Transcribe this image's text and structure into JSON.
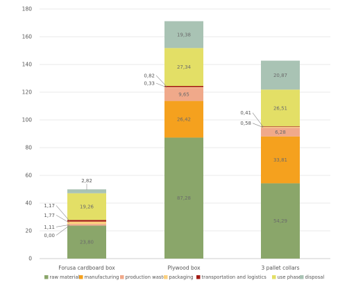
{
  "chart_data": {
    "type": "bar",
    "stacked": true,
    "categories": [
      "Forusa cardboard box",
      "Plywood box",
      "3 pallet collars"
    ],
    "ylim": [
      0,
      180
    ],
    "yticks": [
      "0",
      "20",
      "40",
      "60",
      "80",
      "100",
      "120",
      "140",
      "160",
      "180"
    ],
    "grid": true,
    "legend_position": "bottom",
    "series": [
      {
        "name": "raw materials",
        "color": "#8aa66a",
        "values": [
          23.8,
          87.28,
          54.29
        ],
        "labels": [
          "23,80",
          "87,28",
          "54,29"
        ]
      },
      {
        "name": "manufacturing",
        "color": "#f5a11e",
        "values": [
          0.0,
          26.42,
          33.81
        ],
        "labels": [
          "0,00",
          "26,42",
          "33,81"
        ]
      },
      {
        "name": "production waste",
        "color": "#f0a98a",
        "values": [
          1.11,
          9.65,
          6.28
        ],
        "labels": [
          "1,11",
          "9,65",
          "6,28"
        ]
      },
      {
        "name": "packaging",
        "color": "#fbd07e",
        "values": [
          1.77,
          0.33,
          0.58
        ],
        "labels": [
          "1,77",
          "0,33",
          "0,58"
        ]
      },
      {
        "name": "transportation and logistics",
        "color": "#a31b15",
        "values": [
          1.17,
          0.82,
          0.41
        ],
        "labels": [
          "1,17",
          "0,82",
          "0,41"
        ]
      },
      {
        "name": "use phase",
        "color": "#e3df66",
        "values": [
          19.26,
          27.34,
          26.51
        ],
        "labels": [
          "19,26",
          "27,34",
          "26,51"
        ]
      },
      {
        "name": "disposal",
        "color": "#a9c3b4",
        "values": [
          2.82,
          19.38,
          20.87
        ],
        "labels": [
          "2,82",
          "19,38",
          "20,87"
        ]
      }
    ]
  }
}
